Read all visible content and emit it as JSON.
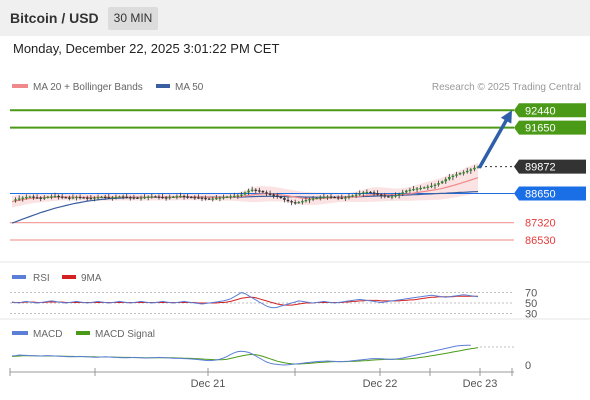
{
  "header": {
    "title": "Bitcoin / USD",
    "timeframe": "30 MIN",
    "timestamp": "Monday, December 22, 2025 3:01:22 PM CET"
  },
  "main_legend": {
    "ma20_label": "MA 20 + Bollinger Bands",
    "ma50_label": "MA 50",
    "credit": "Research © 2025 Trading Central"
  },
  "rsi_legend": {
    "rsi_label": "RSI",
    "ma_label": "9MA"
  },
  "macd_legend": {
    "macd_label": "MACD",
    "signal_label": "MACD Signal"
  },
  "colors": {
    "resistance": "#4a9a17",
    "pivot": "#1a6ee6",
    "support": "#f2a0a0",
    "support_text": "#e53b3b",
    "last_price": "#333333",
    "ma20": "#f08a8a",
    "ma50": "#3a5fa0",
    "bollinger_fill": "#fbe3e3",
    "arrow": "#2e5fa8",
    "rsi": "#5b7fd6",
    "rsi_ma": "#d42020",
    "macd": "#5b7fd6",
    "macd_signal": "#4a9a17"
  },
  "chart_data": {
    "type": "candlestick",
    "x_ticks": [
      "Dec 21",
      "Dec 22",
      "Dec 23"
    ],
    "y_range": [
      85800,
      93000
    ],
    "levels": [
      {
        "value": 92440,
        "label": "92440",
        "kind": "resistance"
      },
      {
        "value": 91650,
        "label": "91650",
        "kind": "resistance"
      },
      {
        "value": 89872,
        "label": "89872",
        "kind": "last"
      },
      {
        "value": 88650,
        "label": "88650",
        "kind": "pivot"
      },
      {
        "value": 87320,
        "label": "87320",
        "kind": "support"
      },
      {
        "value": 86530,
        "label": "86530",
        "kind": "support"
      }
    ],
    "closes": [
      88350,
      88380,
      88420,
      88460,
      88490,
      88510,
      88470,
      88460,
      88440,
      88460,
      88500,
      88520,
      88540,
      88510,
      88480,
      88460,
      88450,
      88470,
      88490,
      88470,
      88460,
      88440,
      88430,
      88460,
      88480,
      88500,
      88480,
      88460,
      88470,
      88490,
      88510,
      88500,
      88480,
      88470,
      88460,
      88440,
      88460,
      88480,
      88500,
      88520,
      88510,
      88490,
      88470,
      88460,
      88480,
      88500,
      88520,
      88540,
      88510,
      88490,
      88480,
      88470,
      88460,
      88440,
      88420,
      88400,
      88420,
      88440,
      88460,
      88480,
      88500,
      88520,
      88540,
      88560,
      88600,
      88700,
      88780,
      88820,
      88790,
      88760,
      88700,
      88640,
      88600,
      88560,
      88500,
      88440,
      88360,
      88300,
      88250,
      88220,
      88260,
      88300,
      88350,
      88390,
      88420,
      88450,
      88470,
      88500,
      88510,
      88490,
      88470,
      88460,
      88450,
      88470,
      88520,
      88560,
      88600,
      88650,
      88700,
      88720,
      88700,
      88660,
      88600,
      88560,
      88520,
      88500,
      88520,
      88560,
      88620,
      88700,
      88780,
      88820,
      88850,
      88880,
      88900,
      88930,
      88960,
      89000,
      89050,
      89120,
      89200,
      89300,
      89400,
      89460,
      89520,
      89580,
      89620,
      89680,
      89750,
      89820,
      89872
    ],
    "ma20": [
      88280,
      88310,
      88340,
      88370,
      88400,
      88420,
      88440,
      88450,
      88460,
      88465,
      88470,
      88475,
      88480,
      88485,
      88485,
      88485,
      88482,
      88480,
      88478,
      88476,
      88474,
      88472,
      88470,
      88470,
      88470,
      88472,
      88474,
      88474,
      88474,
      88476,
      88478,
      88480,
      88480,
      88480,
      88478,
      88476,
      88474,
      88474,
      88476,
      88478,
      88480,
      88482,
      88482,
      88480,
      88480,
      88482,
      88486,
      88490,
      88492,
      88492,
      88490,
      88488,
      88486,
      88484,
      88480,
      88474,
      88468,
      88466,
      88468,
      88472,
      88476,
      88482,
      88490,
      88500,
      88515,
      88535,
      88560,
      88585,
      88605,
      88620,
      88630,
      88632,
      88628,
      88620,
      88608,
      88590,
      88568,
      88540,
      88510,
      88480,
      88455,
      88435,
      88422,
      88412,
      88410,
      88412,
      88420,
      88430,
      88440,
      88450,
      88460,
      88465,
      88468,
      88470,
      88475,
      88485,
      88500,
      88520,
      88542,
      88565,
      88585,
      88600,
      88608,
      88610,
      88608,
      88600,
      88595,
      88592,
      88595,
      88605,
      88620,
      88640,
      88665,
      88690,
      88715,
      88740,
      88765,
      88790,
      88815,
      88845,
      88880,
      88920,
      88965,
      89010,
      89060,
      89110,
      89160,
      89210,
      89265,
      89320,
      89370
    ],
    "boll_width": [
      260,
      260,
      260,
      255,
      250,
      240,
      230,
      220,
      210,
      200,
      190,
      180,
      170,
      160,
      150,
      150,
      150,
      150,
      150,
      150,
      150,
      150,
      150,
      150,
      150,
      150,
      150,
      150,
      150,
      150,
      150,
      150,
      150,
      150,
      150,
      150,
      150,
      150,
      150,
      150,
      150,
      150,
      150,
      150,
      150,
      150,
      150,
      150,
      150,
      150,
      150,
      150,
      150,
      150,
      150,
      150,
      150,
      150,
      150,
      150,
      150,
      160,
      180,
      200,
      230,
      260,
      300,
      330,
      350,
      360,
      360,
      350,
      340,
      330,
      320,
      310,
      300,
      300,
      300,
      300,
      300,
      300,
      300,
      300,
      290,
      280,
      270,
      260,
      250,
      240,
      230,
      220,
      210,
      210,
      210,
      220,
      240,
      260,
      280,
      300,
      320,
      330,
      330,
      320,
      310,
      300,
      290,
      280,
      280,
      290,
      300,
      320,
      340,
      360,
      380,
      400,
      420,
      440,
      460,
      480,
      500,
      520,
      540,
      560,
      580,
      600,
      620,
      640,
      650,
      660,
      670
    ],
    "ma50": [
      87300,
      87360,
      87420,
      87480,
      87540,
      87600,
      87660,
      87720,
      87780,
      87830,
      87880,
      87930,
      87980,
      88020,
      88060,
      88100,
      88140,
      88180,
      88210,
      88240,
      88270,
      88300,
      88320,
      88340,
      88360,
      88380,
      88395,
      88410,
      88420,
      88430,
      88440,
      88448,
      88455,
      88460,
      88465,
      88470,
      88472,
      88474,
      88476,
      88478,
      88480,
      88482,
      88484,
      88485,
      88486,
      88487,
      88488,
      88489,
      88490,
      88490,
      88490,
      88490,
      88490,
      88488,
      88486,
      88484,
      88482,
      88480,
      88480,
      88480,
      88480,
      88482,
      88484,
      88486,
      88490,
      88495,
      88500,
      88505,
      88510,
      88515,
      88518,
      88520,
      88520,
      88518,
      88515,
      88512,
      88508,
      88504,
      88500,
      88496,
      88492,
      88488,
      88485,
      88482,
      88480,
      88479,
      88478,
      88477,
      88477,
      88478,
      88480,
      88482,
      88485,
      88488,
      88492,
      88496,
      88500,
      88505,
      88510,
      88516,
      88522,
      88528,
      88534,
      88540,
      88545,
      88550,
      88555,
      88560,
      88566,
      88572,
      88578,
      88585,
      88592,
      88600,
      88608,
      88616,
      88624,
      88632,
      88640,
      88648,
      88656,
      88664,
      88672,
      88680,
      88688,
      88696,
      88704,
      88712,
      88720,
      88728,
      88736
    ],
    "forecast_arrow": {
      "from": 89872,
      "to": 92440
    },
    "rsi": {
      "levels": [
        70,
        50,
        30
      ],
      "values": [
        52,
        51,
        50,
        52,
        53,
        52,
        51,
        50,
        51,
        52,
        53,
        54,
        53,
        52,
        51,
        50,
        51,
        52,
        53,
        52,
        51,
        50,
        51,
        52,
        53,
        52,
        51,
        50,
        51,
        52,
        53,
        52,
        51,
        50,
        51,
        52,
        53,
        52,
        51,
        50,
        51,
        52,
        53,
        52,
        51,
        50,
        51,
        52,
        53,
        52,
        51,
        50,
        49,
        48,
        49,
        50,
        51,
        52,
        53,
        54,
        56,
        58,
        62,
        66,
        70,
        68,
        64,
        60,
        56,
        52,
        48,
        44,
        42,
        41,
        42,
        44,
        46,
        48,
        50,
        52,
        54,
        53,
        52,
        51,
        50,
        51,
        52,
        53,
        52,
        51,
        50,
        51,
        52,
        53,
        54,
        55,
        56,
        57,
        56,
        55,
        54,
        53,
        52,
        51,
        52,
        53,
        54,
        55,
        56,
        57,
        58,
        59,
        60,
        61,
        62,
        63,
        64,
        65,
        64,
        63,
        62,
        61,
        62,
        63,
        64,
        65,
        66,
        65,
        64,
        63,
        62
      ],
      "ma": [
        51,
        51,
        51,
        51,
        52,
        52,
        52,
        51,
        51,
        51,
        52,
        52,
        52,
        52,
        52,
        51,
        51,
        51,
        51,
        51,
        51,
        51,
        51,
        51,
        51,
        51,
        51,
        51,
        51,
        51,
        51,
        51,
        51,
        51,
        51,
        51,
        51,
        51,
        51,
        51,
        51,
        51,
        51,
        51,
        51,
        51,
        51,
        51,
        51,
        51,
        51,
        51,
        50,
        50,
        50,
        50,
        50,
        50,
        51,
        51,
        52,
        53,
        55,
        57,
        59,
        60,
        61,
        61,
        60,
        58,
        56,
        54,
        52,
        50,
        48,
        47,
        46,
        46,
        46,
        47,
        48,
        49,
        50,
        50,
        50,
        51,
        51,
        51,
        51,
        51,
        51,
        51,
        51,
        52,
        52,
        53,
        53,
        54,
        54,
        55,
        55,
        55,
        55,
        54,
        54,
        54,
        54,
        54,
        54,
        55,
        55,
        56,
        56,
        57,
        58,
        59,
        60,
        61,
        61,
        62,
        62,
        62,
        62,
        62,
        63,
        63,
        63,
        63,
        63,
        63,
        63
      ]
    },
    "macd": {
      "zero_label": "0",
      "macd": [
        40,
        42,
        45,
        44,
        43,
        42,
        41,
        40,
        40,
        41,
        42,
        41,
        40,
        39,
        38,
        37,
        36,
        36,
        37,
        38,
        37,
        36,
        35,
        34,
        34,
        35,
        36,
        35,
        34,
        33,
        32,
        31,
        31,
        32,
        33,
        32,
        31,
        30,
        30,
        31,
        32,
        33,
        32,
        31,
        30,
        29,
        28,
        28,
        27,
        26,
        25,
        24,
        22,
        20,
        18,
        17,
        18,
        20,
        24,
        30,
        38,
        48,
        56,
        62,
        64,
        62,
        58,
        50,
        40,
        30,
        20,
        10,
        4,
        0,
        -2,
        -4,
        -5,
        -4,
        -2,
        0,
        2,
        4,
        6,
        8,
        10,
        12,
        13,
        14,
        15,
        14,
        13,
        12,
        12,
        13,
        14,
        16,
        18,
        20,
        22,
        24,
        26,
        27,
        27,
        26,
        25,
        24,
        24,
        25,
        27,
        30,
        34,
        38,
        42,
        46,
        50,
        54,
        58,
        62,
        66,
        70,
        74,
        78,
        82,
        86,
        90,
        92,
        93,
        94,
        94
      ],
      "signal": [
        38,
        39,
        40,
        41,
        41,
        41,
        41,
        41,
        40,
        40,
        40,
        40,
        40,
        40,
        39,
        39,
        38,
        38,
        37,
        37,
        37,
        36,
        36,
        36,
        35,
        35,
        35,
        35,
        35,
        34,
        34,
        33,
        33,
        33,
        32,
        32,
        32,
        31,
        31,
        31,
        31,
        31,
        31,
        31,
        31,
        31,
        30,
        30,
        29,
        29,
        28,
        27,
        26,
        25,
        24,
        23,
        22,
        21,
        21,
        22,
        24,
        28,
        32,
        36,
        40,
        44,
        46,
        48,
        46,
        43,
        38,
        32,
        26,
        20,
        14,
        10,
        6,
        3,
        1,
        0,
        0,
        1,
        2,
        3,
        5,
        6,
        8,
        9,
        10,
        11,
        12,
        12,
        12,
        12,
        13,
        13,
        14,
        15,
        16,
        17,
        19,
        20,
        21,
        22,
        23,
        23,
        23,
        24,
        24,
        24,
        25,
        26,
        28,
        30,
        33,
        35,
        38,
        41,
        44,
        47,
        50,
        53,
        56,
        60,
        63,
        66,
        70,
        73,
        76,
        79,
        82
      ]
    }
  }
}
